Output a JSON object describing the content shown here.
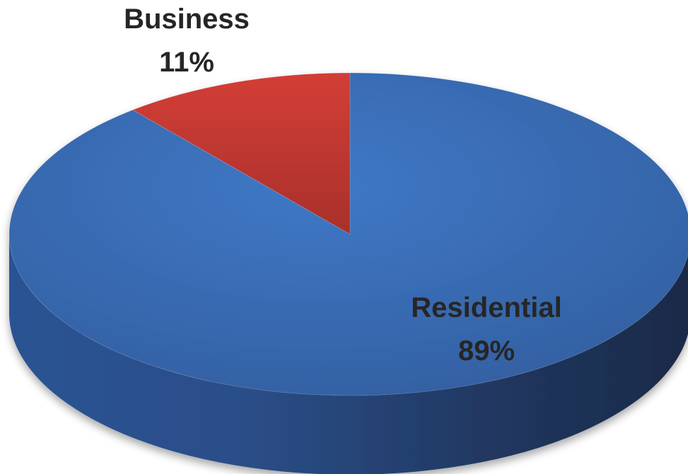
{
  "chart_data": {
    "type": "pie",
    "style": "3d",
    "title": "",
    "slices": [
      {
        "name": "Residential",
        "value": 89,
        "label": "89%",
        "color": "#3A6FBA"
      },
      {
        "name": "Business",
        "value": 11,
        "label": "11%",
        "color": "#C23B35"
      }
    ],
    "start_angle_deg": 0,
    "direction": "clockwise",
    "legend": "none"
  }
}
